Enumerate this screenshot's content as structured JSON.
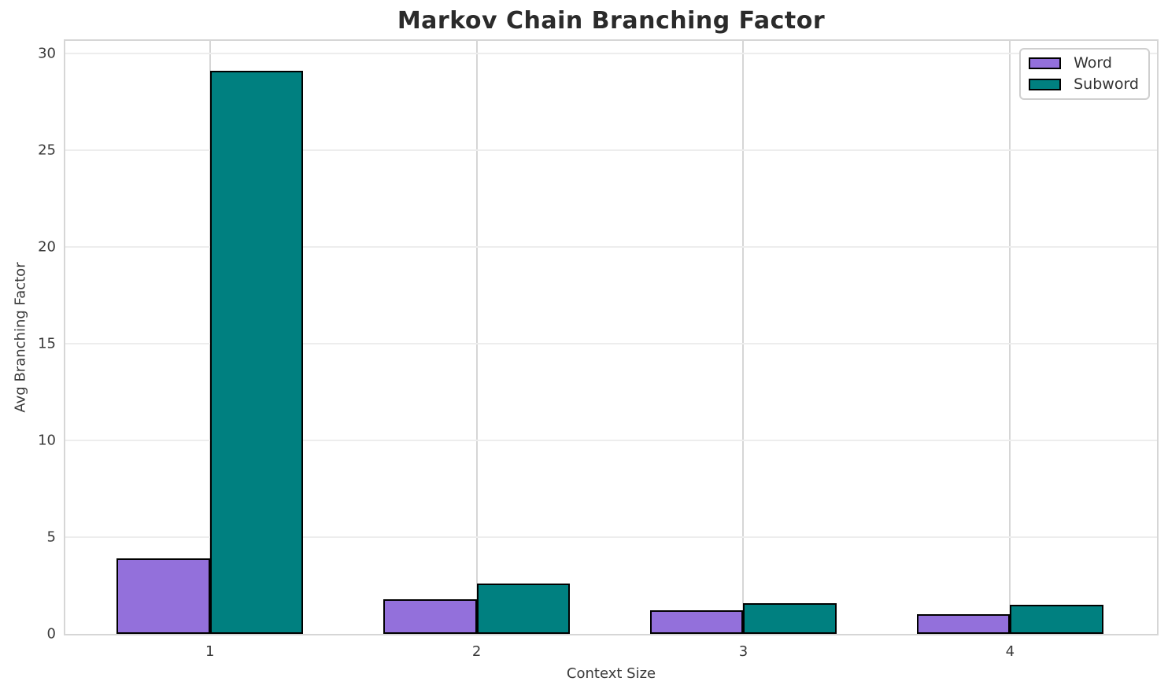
{
  "chart_data": {
    "type": "bar",
    "title": "Markov Chain Branching Factor",
    "xlabel": "Context Size",
    "ylabel": "Avg Branching Factor",
    "categories": [
      1,
      2,
      3,
      4
    ],
    "series": [
      {
        "name": "Word",
        "color": "#9370DB",
        "values": [
          3.9,
          1.8,
          1.2,
          1.0
        ]
      },
      {
        "name": "Subword",
        "color": "#008080",
        "values": [
          29.1,
          2.6,
          1.6,
          1.5
        ]
      }
    ],
    "bar_edge_color": "#000000",
    "yticks": [
      0,
      5,
      10,
      15,
      20,
      25,
      30
    ],
    "ylim": [
      0,
      30.63
    ],
    "bar_width_units": 0.35,
    "grid": true,
    "legend_position": "upper right",
    "title_color": "#2b2b2b",
    "tick_label_color": "#3a3a3a",
    "grid_color_horizontal": "#ededed",
    "grid_color_vertical": "#d6d6d6"
  }
}
